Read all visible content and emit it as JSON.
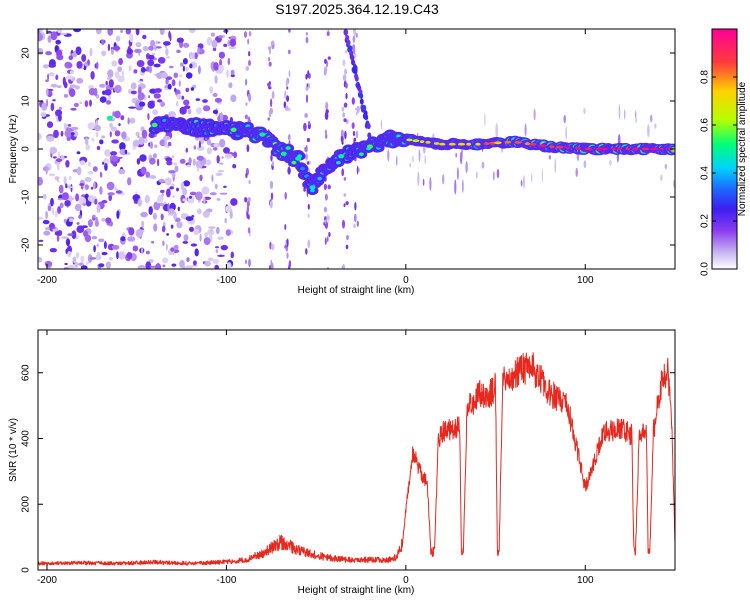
{
  "title": "S197.2025.364.12.19.C43",
  "colors": {
    "snr_line": "#e8281e",
    "colormap": [
      "#ffffff",
      "#c8b4f0",
      "#8a3cf0",
      "#3c1ef0",
      "#1e64ff",
      "#00d2ff",
      "#00ff78",
      "#b4ff00",
      "#ffd200",
      "#ff3c3c",
      "#ff0096"
    ]
  },
  "chart_data": [
    {
      "type": "heatmap",
      "title": "S197.2025.364.12.19.C43",
      "xlabel": "Height of straight line (km)",
      "ylabel": "Frequency (Hz)",
      "xlim": [
        -205,
        150
      ],
      "ylim": [
        -25,
        25
      ],
      "xticks": [
        -200,
        -100,
        0,
        100
      ],
      "xtick_labels": [
        "-200",
        "-100",
        "0",
        "100"
      ],
      "yticks": [
        -20,
        -10,
        0,
        10,
        20
      ],
      "ytick_labels": [
        "-20",
        "-10",
        "0",
        "10",
        "20"
      ],
      "colorbar": {
        "label": "Normalized spectral amplitude",
        "range": [
          0,
          1
        ],
        "ticks": [
          0.0,
          0.2,
          0.4,
          0.6,
          0.8
        ],
        "tick_labels": [
          "0.0",
          "0.2",
          "0.4",
          "0.6",
          "0.8"
        ]
      },
      "ridge": [
        {
          "x": -165,
          "f": 6.5,
          "a": 0.45
        },
        {
          "x": -140,
          "f": 5.0,
          "a": 0.45
        },
        {
          "x": -95,
          "f": 4.0,
          "a": 0.45
        },
        {
          "x": -80,
          "f": 3.0,
          "a": 0.55
        },
        {
          "x": -72,
          "f": 0.0,
          "a": 0.55
        },
        {
          "x": -60,
          "f": -2.0,
          "a": 0.5
        },
        {
          "x": -52,
          "f": -8.0,
          "a": 0.45
        },
        {
          "x": -45,
          "f": -4.0,
          "a": 0.4
        },
        {
          "x": -35,
          "f": -1.5,
          "a": 0.45
        },
        {
          "x": -20,
          "f": 0.5,
          "a": 0.5
        },
        {
          "x": -10,
          "f": 2.0,
          "a": 0.5
        },
        {
          "x": 0,
          "f": 2.0,
          "a": 0.55
        },
        {
          "x": 20,
          "f": 1.0,
          "a": 0.6
        },
        {
          "x": 40,
          "f": 1.0,
          "a": 0.7
        },
        {
          "x": 60,
          "f": 1.5,
          "a": 0.75
        },
        {
          "x": 80,
          "f": 0.5,
          "a": 0.85
        },
        {
          "x": 100,
          "f": 0.0,
          "a": 0.95
        },
        {
          "x": 120,
          "f": 0.0,
          "a": 0.95
        },
        {
          "x": 140,
          "f": 0.0,
          "a": 0.9
        },
        {
          "x": 150,
          "f": 0.0,
          "a": 0.85
        }
      ]
    },
    {
      "type": "line",
      "xlabel": "Height of straight line (km)",
      "ylabel": "SNR (10 * v/v)",
      "xlim": [
        -205,
        150
      ],
      "ylim": [
        0,
        730
      ],
      "xticks": [
        -200,
        -100,
        0,
        100
      ],
      "xtick_labels": [
        "-200",
        "-100",
        "0",
        "100"
      ],
      "yticks": [
        0,
        200,
        400,
        600
      ],
      "ytick_labels": [
        "0",
        "200",
        "400",
        "600"
      ],
      "series": [
        {
          "name": "SNR",
          "x": [
            -205,
            -180,
            -160,
            -140,
            -120,
            -100,
            -90,
            -80,
            -70,
            -60,
            -50,
            -40,
            -30,
            -20,
            -10,
            -5,
            -2,
            0,
            2,
            4,
            8,
            12,
            14,
            16,
            18,
            20,
            25,
            30,
            31,
            32,
            34,
            36,
            38,
            40,
            45,
            50,
            51,
            52,
            54,
            56,
            60,
            70,
            80,
            90,
            95,
            100,
            105,
            110,
            120,
            126,
            127,
            128,
            130,
            134,
            135,
            136,
            138,
            142,
            146,
            148,
            150
          ],
          "y": [
            20,
            22,
            20,
            24,
            20,
            25,
            30,
            50,
            85,
            60,
            45,
            35,
            30,
            32,
            30,
            40,
            80,
            180,
            280,
            360,
            300,
            260,
            50,
            60,
            380,
            420,
            430,
            440,
            50,
            55,
            460,
            520,
            500,
            540,
            520,
            560,
            50,
            60,
            600,
            560,
            600,
            620,
            540,
            500,
            380,
            250,
            330,
            420,
            430,
            410,
            60,
            50,
            400,
            440,
            60,
            55,
            420,
            560,
            600,
            480,
            90
          ]
        }
      ]
    }
  ]
}
